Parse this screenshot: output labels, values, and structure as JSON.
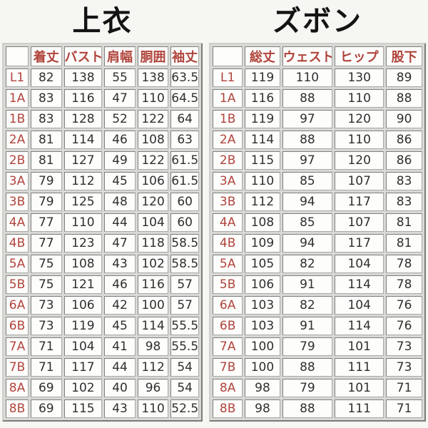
{
  "page": {
    "background": "#f6f6f3"
  },
  "colors": {
    "accent_red": "#b0443c",
    "value_text": "#2f2f2f",
    "title_text": "#141414",
    "cell_background": "#fdfdfb",
    "table_frame_background": "#d9d9d5"
  },
  "tables": [
    {
      "title": "上衣",
      "columns": [
        "着丈",
        "バスト",
        "肩幅",
        "胴囲",
        "袖丈"
      ],
      "rows": [
        {
          "label": "L1",
          "values": [
            "82",
            "138",
            "55",
            "138",
            "63.5"
          ]
        },
        {
          "label": "1A",
          "values": [
            "83",
            "116",
            "47",
            "110",
            "64.5"
          ]
        },
        {
          "label": "1B",
          "values": [
            "83",
            "128",
            "52",
            "122",
            "64"
          ]
        },
        {
          "label": "2A",
          "values": [
            "81",
            "114",
            "46",
            "108",
            "63"
          ]
        },
        {
          "label": "2B",
          "values": [
            "81",
            "127",
            "49",
            "122",
            "61.5"
          ]
        },
        {
          "label": "3A",
          "values": [
            "79",
            "112",
            "45",
            "106",
            "61.5"
          ]
        },
        {
          "label": "3B",
          "values": [
            "79",
            "125",
            "48",
            "120",
            "60"
          ]
        },
        {
          "label": "4A",
          "values": [
            "77",
            "110",
            "44",
            "104",
            "60"
          ]
        },
        {
          "label": "4B",
          "values": [
            "77",
            "123",
            "47",
            "118",
            "58.5"
          ]
        },
        {
          "label": "5A",
          "values": [
            "75",
            "108",
            "43",
            "102",
            "58.5"
          ]
        },
        {
          "label": "5B",
          "values": [
            "75",
            "121",
            "46",
            "116",
            "57"
          ]
        },
        {
          "label": "6A",
          "values": [
            "73",
            "106",
            "42",
            "100",
            "57"
          ]
        },
        {
          "label": "6B",
          "values": [
            "73",
            "119",
            "45",
            "114",
            "55.5"
          ]
        },
        {
          "label": "7A",
          "values": [
            "71",
            "104",
            "41",
            "98",
            "55.5"
          ]
        },
        {
          "label": "7B",
          "values": [
            "71",
            "117",
            "44",
            "112",
            "54"
          ]
        },
        {
          "label": "8A",
          "values": [
            "69",
            "102",
            "40",
            "96",
            "54"
          ]
        },
        {
          "label": "8B",
          "values": [
            "69",
            "115",
            "43",
            "110",
            "52.5"
          ]
        }
      ]
    },
    {
      "title": "ズボン",
      "columns": [
        "総丈",
        "ウェスト",
        "ヒップ",
        "股下"
      ],
      "rows": [
        {
          "label": "L1",
          "values": [
            "119",
            "110",
            "130",
            "89"
          ]
        },
        {
          "label": "1A",
          "values": [
            "116",
            "88",
            "110",
            "88"
          ]
        },
        {
          "label": "1B",
          "values": [
            "119",
            "97",
            "120",
            "90"
          ]
        },
        {
          "label": "2A",
          "values": [
            "114",
            "88",
            "110",
            "86"
          ]
        },
        {
          "label": "2B",
          "values": [
            "115",
            "97",
            "120",
            "86"
          ]
        },
        {
          "label": "3A",
          "values": [
            "110",
            "85",
            "107",
            "83"
          ]
        },
        {
          "label": "3B",
          "values": [
            "112",
            "94",
            "117",
            "83"
          ]
        },
        {
          "label": "4A",
          "values": [
            "108",
            "85",
            "107",
            "81"
          ]
        },
        {
          "label": "4B",
          "values": [
            "109",
            "94",
            "117",
            "81"
          ]
        },
        {
          "label": "5A",
          "values": [
            "105",
            "82",
            "104",
            "78"
          ]
        },
        {
          "label": "5B",
          "values": [
            "106",
            "91",
            "114",
            "78"
          ]
        },
        {
          "label": "6A",
          "values": [
            "103",
            "82",
            "104",
            "76"
          ]
        },
        {
          "label": "6B",
          "values": [
            "103",
            "91",
            "114",
            "76"
          ]
        },
        {
          "label": "7A",
          "values": [
            "100",
            "79",
            "101",
            "73"
          ]
        },
        {
          "label": "7B",
          "values": [
            "100",
            "88",
            "111",
            "73"
          ]
        },
        {
          "label": "8A",
          "values": [
            "98",
            "79",
            "101",
            "71"
          ]
        },
        {
          "label": "8B",
          "values": [
            "98",
            "88",
            "111",
            "71"
          ]
        }
      ]
    }
  ]
}
